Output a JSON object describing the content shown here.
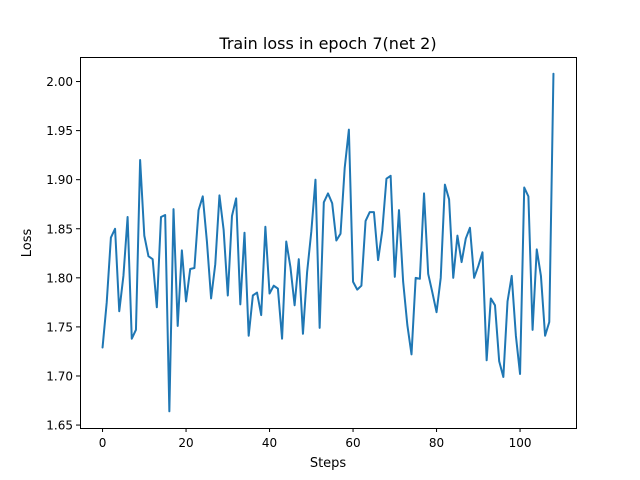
{
  "chart_data": {
    "type": "line",
    "title": "Train loss in epoch 7(net 2)",
    "xlabel": "Steps",
    "ylabel": "Loss",
    "xlim": [
      -5.4,
      113.4
    ],
    "ylim": [
      1.647,
      2.025
    ],
    "xticks": [
      0,
      20,
      40,
      60,
      80,
      100
    ],
    "yticks": [
      1.65,
      1.7,
      1.75,
      1.8,
      1.85,
      1.9,
      1.95,
      2.0
    ],
    "ytick_labels": [
      "1.65",
      "1.70",
      "1.75",
      "1.80",
      "1.85",
      "1.90",
      "1.95",
      "2.00"
    ],
    "grid": false,
    "series": [
      {
        "color": "#1f77b4",
        "x": [
          0,
          1,
          2,
          3,
          4,
          5,
          6,
          7,
          8,
          9,
          10,
          11,
          12,
          13,
          14,
          15,
          16,
          17,
          18,
          19,
          20,
          21,
          22,
          23,
          24,
          25,
          26,
          27,
          28,
          29,
          30,
          31,
          32,
          33,
          34,
          35,
          36,
          37,
          38,
          39,
          40,
          41,
          42,
          43,
          44,
          45,
          46,
          47,
          48,
          49,
          50,
          51,
          52,
          53,
          54,
          55,
          56,
          57,
          58,
          59,
          60,
          61,
          62,
          63,
          64,
          65,
          66,
          67,
          68,
          69,
          70,
          71,
          72,
          73,
          74,
          75,
          76,
          77,
          78,
          79,
          80,
          81,
          82,
          83,
          84,
          85,
          86,
          87,
          88,
          89,
          90,
          91,
          92,
          93,
          94,
          95,
          96,
          97,
          98,
          99,
          100,
          101,
          102,
          103,
          104,
          105,
          106,
          107,
          108
        ],
        "y": [
          1.729,
          1.775,
          1.841,
          1.85,
          1.766,
          1.802,
          1.862,
          1.738,
          1.747,
          1.92,
          1.843,
          1.822,
          1.819,
          1.77,
          1.862,
          1.864,
          1.664,
          1.87,
          1.751,
          1.828,
          1.776,
          1.809,
          1.81,
          1.869,
          1.883,
          1.837,
          1.779,
          1.814,
          1.884,
          1.849,
          1.782,
          1.863,
          1.881,
          1.773,
          1.846,
          1.741,
          1.782,
          1.785,
          1.762,
          1.852,
          1.784,
          1.792,
          1.789,
          1.738,
          1.837,
          1.811,
          1.772,
          1.819,
          1.743,
          1.806,
          1.847,
          1.9,
          1.749,
          1.877,
          1.886,
          1.876,
          1.838,
          1.845,
          1.912,
          1.951,
          1.796,
          1.788,
          1.792,
          1.858,
          1.867,
          1.867,
          1.818,
          1.848,
          1.901,
          1.904,
          1.801,
          1.869,
          1.796,
          1.752,
          1.722,
          1.8,
          1.799,
          1.886,
          1.804,
          1.785,
          1.765,
          1.8,
          1.895,
          1.88,
          1.8,
          1.843,
          1.816,
          1.84,
          1.851,
          1.8,
          1.812,
          1.826,
          1.716,
          1.779,
          1.772,
          1.715,
          1.699,
          1.776,
          1.802,
          1.741,
          1.702,
          1.892,
          1.883,
          1.747,
          1.829,
          1.802,
          1.741,
          1.755,
          2.008
        ]
      }
    ]
  }
}
